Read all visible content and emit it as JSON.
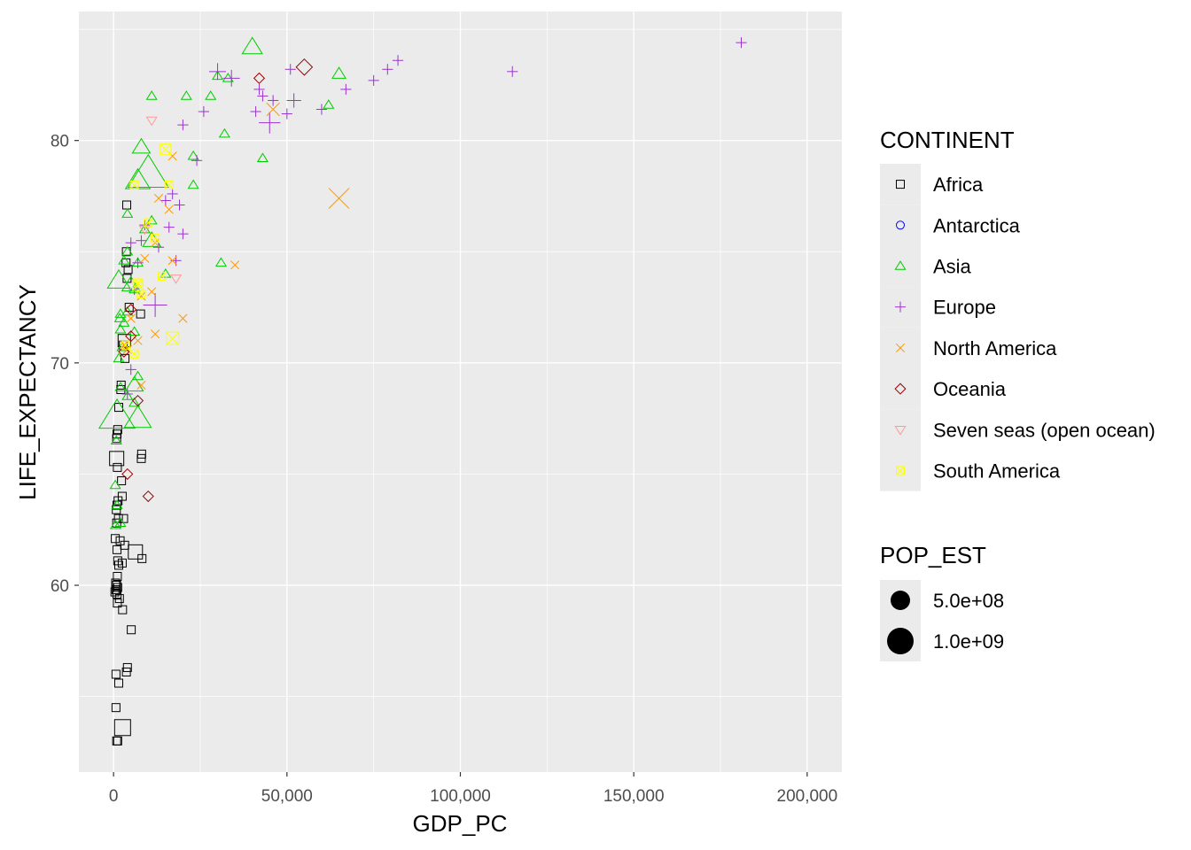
{
  "chart_data": {
    "type": "scatter",
    "title": "",
    "xlabel": "GDP_PC",
    "ylabel": "LIFE_EXPECTANCY",
    "xlim": [
      -10000,
      210000
    ],
    "ylim": [
      51.6,
      85.8
    ],
    "x_ticks": [
      0,
      50000,
      100000,
      150000,
      200000
    ],
    "x_tick_labels": [
      "0",
      "50,000",
      "100,000",
      "150,000",
      "200,000"
    ],
    "y_ticks": [
      60,
      70,
      80
    ],
    "y_tick_labels": [
      "60",
      "70",
      "80"
    ],
    "grid": true,
    "legend_position": "right",
    "legend": {
      "shape_title": "CONTINENT",
      "size_title": "POP_EST",
      "size_entries": [
        {
          "label": "5.0e+08",
          "pop": 500000000
        },
        {
          "label": "1.0e+09",
          "pop": 1000000000
        }
      ]
    },
    "series": [
      {
        "name": "Africa",
        "shape": "square",
        "color": "#000000",
        "points": [
          [
            3800,
            77.1
          ],
          [
            3700,
            75
          ],
          [
            3600,
            74.5
          ],
          [
            4200,
            74.2
          ],
          [
            3900,
            73.8
          ],
          [
            3300,
            70.2
          ],
          [
            2800,
            70.8
          ],
          [
            4500,
            72.5
          ],
          [
            7800,
            72.2
          ],
          [
            3100,
            71
          ],
          [
            2200,
            69
          ],
          [
            2100,
            68.8
          ],
          [
            1500,
            68
          ],
          [
            1200,
            67
          ],
          [
            1000,
            66.8
          ],
          [
            900,
            66.6
          ],
          [
            8100,
            65.9
          ],
          [
            8000,
            65.7
          ],
          [
            900,
            65.7
          ],
          [
            1100,
            65.3
          ],
          [
            2300,
            64.7
          ],
          [
            2500,
            64
          ],
          [
            1300,
            63.8
          ],
          [
            1000,
            63.6
          ],
          [
            800,
            63.4
          ],
          [
            2900,
            63
          ],
          [
            1400,
            63
          ],
          [
            900,
            62.8
          ],
          [
            500,
            62.1
          ],
          [
            1900,
            62
          ],
          [
            3200,
            61.8
          ],
          [
            6300,
            61.5
          ],
          [
            1000,
            61.6
          ],
          [
            8200,
            61.2
          ],
          [
            1200,
            61.1
          ],
          [
            2500,
            61
          ],
          [
            1500,
            60.9
          ],
          [
            1100,
            60.4
          ],
          [
            600,
            60.1
          ],
          [
            900,
            60
          ],
          [
            1200,
            59.9
          ],
          [
            700,
            59.8
          ],
          [
            400,
            59.7
          ],
          [
            1000,
            59.6
          ],
          [
            1700,
            59.4
          ],
          [
            1100,
            59.2
          ],
          [
            2600,
            58.9
          ],
          [
            5100,
            58
          ],
          [
            4000,
            56.3
          ],
          [
            3700,
            56.1
          ],
          [
            700,
            56
          ],
          [
            1500,
            55.6
          ],
          [
            700,
            54.5
          ],
          [
            2600,
            53.6
          ],
          [
            900,
            53
          ],
          [
            1200,
            53
          ]
        ]
      },
      {
        "name": "Antarctica",
        "shape": "circle",
        "color": "#0000ff",
        "points": []
      },
      {
        "name": "Asia",
        "shape": "triangle",
        "color": "#00cc00",
        "points": [
          [
            40000,
            84.2
          ],
          [
            30000,
            82.9
          ],
          [
            33000,
            82.8
          ],
          [
            65000,
            83
          ],
          [
            11000,
            82
          ],
          [
            21000,
            82
          ],
          [
            28000,
            82
          ],
          [
            62000,
            81.6
          ],
          [
            32000,
            80.3
          ],
          [
            8000,
            79.7
          ],
          [
            43000,
            79.2
          ],
          [
            23000,
            79.3
          ],
          [
            10000,
            78.5
          ],
          [
            23000,
            78
          ],
          [
            7000,
            78.2
          ],
          [
            4000,
            76.7
          ],
          [
            11000,
            76.4
          ],
          [
            9000,
            76
          ],
          [
            11000,
            75.5
          ],
          [
            4000,
            75
          ],
          [
            31000,
            74.5
          ],
          [
            15000,
            74
          ],
          [
            3000,
            74.6
          ],
          [
            7000,
            74.5
          ],
          [
            1500,
            73.7
          ],
          [
            5000,
            73.5
          ],
          [
            6000,
            73.3
          ],
          [
            2000,
            72.2
          ],
          [
            4000,
            72.3
          ],
          [
            1800,
            72
          ],
          [
            3000,
            71.8
          ],
          [
            2000,
            71.5
          ],
          [
            6000,
            71.4
          ],
          [
            2500,
            70.7
          ],
          [
            1500,
            70.2
          ],
          [
            7000,
            69.4
          ],
          [
            6000,
            69
          ],
          [
            2000,
            68.9
          ],
          [
            4000,
            68.5
          ],
          [
            6000,
            68.2
          ],
          [
            1000,
            67.6
          ],
          [
            7000,
            67.5
          ],
          [
            800,
            66.5
          ],
          [
            500,
            64.5
          ],
          [
            1000,
            63.6
          ],
          [
            2000,
            62.8
          ],
          [
            600,
            62.7
          ]
        ]
      },
      {
        "name": "Europe",
        "shape": "plus",
        "color": "#9933cc",
        "points": [
          [
            181000,
            84.4
          ],
          [
            115000,
            83.1
          ],
          [
            82000,
            83.6
          ],
          [
            79000,
            83.2
          ],
          [
            75000,
            82.7
          ],
          [
            67000,
            82.3
          ],
          [
            60000,
            81.4
          ],
          [
            52000,
            81.8
          ],
          [
            50000,
            81.2
          ],
          [
            45000,
            80.8
          ],
          [
            46000,
            81.8
          ],
          [
            42000,
            82.3
          ],
          [
            41000,
            81.3
          ],
          [
            43000,
            82
          ],
          [
            51000,
            83.2
          ],
          [
            30000,
            83.1
          ],
          [
            34000,
            82.8
          ],
          [
            26000,
            81.3
          ],
          [
            20000,
            80.7
          ],
          [
            24000,
            79.1
          ],
          [
            17000,
            77.6
          ],
          [
            15000,
            77.3
          ],
          [
            19000,
            77.1
          ],
          [
            16000,
            76.1
          ],
          [
            20000,
            75.8
          ],
          [
            13000,
            75.2
          ],
          [
            8000,
            75.5
          ],
          [
            5000,
            75.4
          ],
          [
            18000,
            74.6
          ],
          [
            12000,
            72.6
          ],
          [
            4000,
            68.6
          ],
          [
            5000,
            69.7
          ],
          [
            9000,
            76.2
          ],
          [
            7000,
            74.5
          ],
          [
            6000,
            73.3
          ]
        ]
      },
      {
        "name": "North America",
        "shape": "cross",
        "color": "#ff9900",
        "points": [
          [
            65000,
            77.4
          ],
          [
            46000,
            81.4
          ],
          [
            35000,
            74.4
          ],
          [
            20000,
            72
          ],
          [
            17000,
            79.3
          ],
          [
            17000,
            74.6
          ],
          [
            16000,
            76.9
          ],
          [
            13000,
            77.4
          ],
          [
            12000,
            75.4
          ],
          [
            11000,
            73.2
          ],
          [
            9000,
            74.7
          ],
          [
            8000,
            73
          ],
          [
            8000,
            69
          ],
          [
            7000,
            71
          ],
          [
            5000,
            72
          ],
          [
            4000,
            70.6
          ],
          [
            3000,
            70.8
          ],
          [
            12000,
            71.3
          ]
        ]
      },
      {
        "name": "Oceania",
        "shape": "diamond",
        "color": "#990000",
        "points": [
          [
            55000,
            83.3
          ],
          [
            42000,
            82.8
          ],
          [
            10000,
            64
          ],
          [
            4000,
            65
          ],
          [
            7000,
            68.3
          ],
          [
            5000,
            71.2
          ],
          [
            3000,
            70.5
          ],
          [
            5000,
            72.4
          ]
        ]
      },
      {
        "name": "Seven seas (open ocean)",
        "shape": "triangle-down",
        "color": "#ff9999",
        "points": [
          [
            11000,
            80.9
          ],
          [
            18000,
            73.8
          ],
          [
            9000,
            76
          ]
        ]
      },
      {
        "name": "South America",
        "shape": "square-cross",
        "color": "#ffff00",
        "points": [
          [
            15000,
            79.6
          ],
          [
            17000,
            71.1
          ],
          [
            16000,
            78
          ],
          [
            10000,
            76.3
          ],
          [
            14000,
            73.9
          ],
          [
            7000,
            73.5
          ],
          [
            8000,
            73.1
          ],
          [
            6000,
            78
          ],
          [
            7000,
            73.6
          ],
          [
            12000,
            75.6
          ],
          [
            6000,
            70.4
          ],
          [
            3500,
            70.8
          ]
        ]
      }
    ]
  }
}
